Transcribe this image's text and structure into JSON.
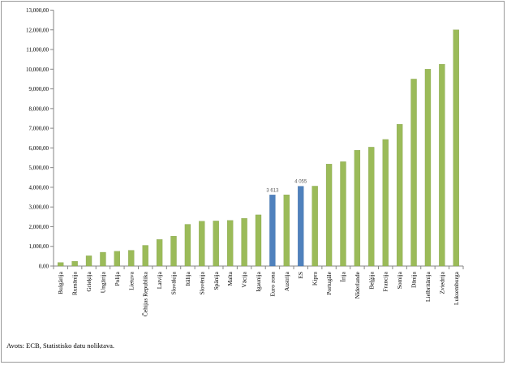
{
  "chart_data": {
    "type": "bar",
    "categories": [
      "Bulgārija",
      "Rumānija",
      "Grieķija",
      "Ungārija",
      "Polija",
      "Lietuva",
      "Čehijas Republika",
      "Latvija",
      "Slovākija",
      "Itālija",
      "Slovēnija",
      "Spānija",
      "Malta",
      "Vācija",
      "Igaunija",
      "Euro zona",
      "Austrija",
      "ES",
      "Kipra",
      "Portugāle",
      "Īrija",
      "Nīderlande",
      "Beļģija",
      "Francija",
      "Somija",
      "Dānija",
      "Lielbritānija",
      "Zviedrija",
      "Luksemburga"
    ],
    "values": [
      180,
      240,
      520,
      700,
      750,
      800,
      1050,
      1350,
      1520,
      2120,
      2280,
      2290,
      2320,
      2420,
      2600,
      3613,
      3620,
      4055,
      4060,
      5180,
      5300,
      5880,
      6040,
      6430,
      7200,
      9500,
      10000,
      10250,
      12000
    ],
    "highlighted": [
      "Euro zona",
      "ES"
    ],
    "data_labels": [
      {
        "category": "Euro zona",
        "text": "3 613"
      },
      {
        "category": "ES",
        "text": "4 055"
      }
    ],
    "y_ticks": [
      "0,00",
      "1,000,00",
      "2,000,00",
      "3,000,00",
      "4,000,00",
      "5,000,00",
      "6,000,00",
      "7,000,00",
      "8,000,00",
      "9,000,00",
      "10,000,00",
      "11,000,00",
      "12,000,00",
      "13,000,00"
    ],
    "ylim": [
      0,
      13000
    ],
    "grid": false,
    "colors": {
      "bar": "#9bbb59",
      "highlight": "#4f81bd",
      "bar_stroke": "#7d9a42",
      "highlight_stroke": "#3f6da3",
      "label": "#595959"
    }
  },
  "source_text": "Avots: ECB, Statistisko datu noliktava."
}
